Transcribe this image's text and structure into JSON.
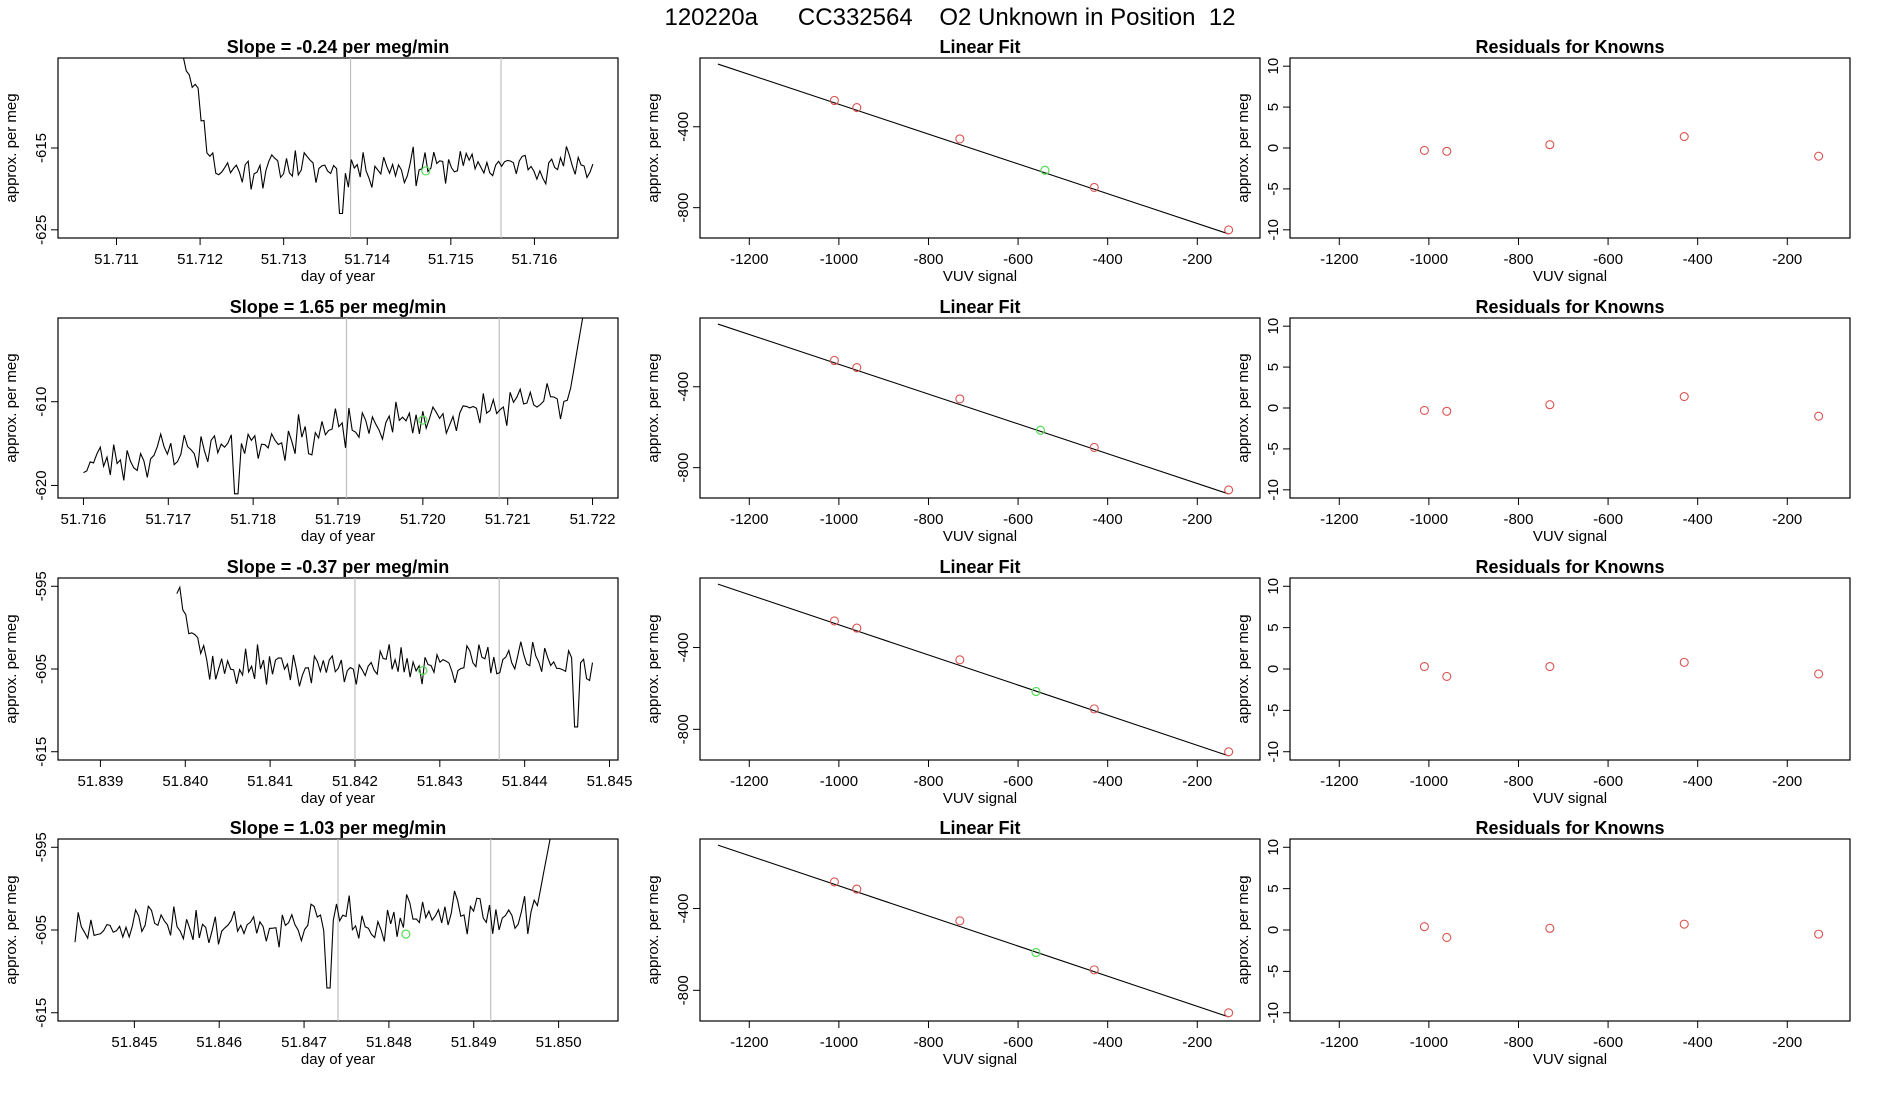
{
  "figure": {
    "title": "120220a      CC332564    O2 Unknown in Position  12"
  },
  "colors": {
    "axis": "#000000",
    "trace": "#000000",
    "vline": "#bfbfbf",
    "known_point": "#d9534f",
    "unknown_point": "#55dd55"
  },
  "chart_data": [
    {
      "type": "line",
      "title": "Slope =  -0.24  per meg/min",
      "xlabel": "day of year",
      "ylabel": "approx. per meg",
      "xlim": [
        51.7103,
        51.717
      ],
      "ylim": [
        -626,
        -604
      ],
      "xticks": [
        "51.711",
        "51.712",
        "51.713",
        "51.714",
        "51.715",
        "51.716"
      ],
      "xtick_values": [
        51.711,
        51.712,
        51.713,
        51.714,
        51.715,
        51.716
      ],
      "yticks": [
        "-625",
        "-615"
      ],
      "ytick_values": [
        -625,
        -615
      ],
      "vlines": [
        51.7138,
        51.7156
      ],
      "trace": {
        "x_start": 51.7118,
        "x_end": 51.7167,
        "n": 140,
        "start_y": -603,
        "settle_y": -617.5,
        "noise": 1.8,
        "spike_at": 51.7137,
        "spike_y": -623,
        "end_y": -617.0,
        "seed": 11
      },
      "unknown_point": {
        "x": 51.7147,
        "y": -617.8
      }
    },
    {
      "type": "scatter",
      "title": "Linear Fit",
      "xlabel": "VUV signal",
      "ylabel": "approx. per meg",
      "xlim": [
        -1310,
        -60
      ],
      "ylim": [
        -950,
        -60
      ],
      "xticks": [
        "-1200",
        "-1000",
        "-800",
        "-600",
        "-400",
        "-200"
      ],
      "xtick_values": [
        -1200,
        -1000,
        -800,
        -600,
        -400,
        -200
      ],
      "yticks": [
        "-800",
        "-400"
      ],
      "ytick_values": [
        -800,
        -400
      ],
      "fit_line": {
        "x": [
          -1270,
          -130
        ],
        "y": [
          -90,
          -930
        ]
      },
      "knowns": {
        "x": [
          -1010,
          -960,
          -730,
          -430,
          -130
        ],
        "y": [
          -270,
          -305,
          -460,
          -700,
          -910
        ]
      },
      "unknown": {
        "x": -540,
        "y": -615
      }
    },
    {
      "type": "scatter",
      "title": "Residuals for Knowns",
      "xlabel": "VUV signal",
      "ylabel": "approx. per meg",
      "xlim": [
        -1310,
        -60
      ],
      "ylim": [
        -11,
        11
      ],
      "xticks": [
        "-1200",
        "-1000",
        "-800",
        "-600",
        "-400",
        "-200"
      ],
      "xtick_values": [
        -1200,
        -1000,
        -800,
        -600,
        -400,
        -200
      ],
      "yticks": [
        "-10",
        "-5",
        "0",
        "5",
        "10"
      ],
      "ytick_values": [
        -10,
        -5,
        0,
        5,
        10
      ],
      "knowns": {
        "x": [
          -1010,
          -960,
          -730,
          -430,
          -130
        ],
        "y": [
          -0.3,
          -0.4,
          0.4,
          1.4,
          -1.0
        ]
      }
    },
    {
      "type": "line",
      "title": "Slope =  1.65  per meg/min",
      "xlabel": "day of year",
      "ylabel": "approx. per meg",
      "xlim": [
        51.7157,
        51.7223
      ],
      "ylim": [
        -621.5,
        -600
      ],
      "xticks": [
        "51.716",
        "51.717",
        "51.718",
        "51.719",
        "51.720",
        "51.721",
        "51.722"
      ],
      "xtick_values": [
        51.716,
        51.717,
        51.718,
        51.719,
        51.72,
        51.721,
        51.722
      ],
      "yticks": [
        "-620",
        "-610"
      ],
      "ytick_values": [
        -620,
        -610
      ],
      "vlines": [
        51.7191,
        51.7209
      ],
      "trace": {
        "x_start": 51.716,
        "x_end": 51.7219,
        "n": 150,
        "start_y": -617.5,
        "settle_y": -617.5,
        "noise": 1.9,
        "spike_at": 51.7178,
        "spike_y": -621,
        "end_y": -609.5,
        "seed": 23,
        "tail_up": -599
      },
      "unknown_point": {
        "x": 51.72,
        "y": -612.2
      }
    },
    {
      "type": "scatter",
      "title": "Linear Fit",
      "xlabel": "VUV signal",
      "ylabel": "approx. per meg",
      "xlim": [
        -1310,
        -60
      ],
      "ylim": [
        -950,
        -60
      ],
      "xticks": [
        "-1200",
        "-1000",
        "-800",
        "-600",
        "-400",
        "-200"
      ],
      "xtick_values": [
        -1200,
        -1000,
        -800,
        -600,
        -400,
        -200
      ],
      "yticks": [
        "-800",
        "-400"
      ],
      "ytick_values": [
        -800,
        -400
      ],
      "fit_line": {
        "x": [
          -1270,
          -130
        ],
        "y": [
          -90,
          -930
        ]
      },
      "knowns": {
        "x": [
          -1010,
          -960,
          -730,
          -430,
          -130
        ],
        "y": [
          -270,
          -305,
          -460,
          -700,
          -910
        ]
      },
      "unknown": {
        "x": -550,
        "y": -615
      }
    },
    {
      "type": "scatter",
      "title": "Residuals for Knowns",
      "xlabel": "VUV signal",
      "ylabel": "approx. per meg",
      "xlim": [
        -1310,
        -60
      ],
      "ylim": [
        -11,
        11
      ],
      "xticks": [
        "-1200",
        "-1000",
        "-800",
        "-600",
        "-400",
        "-200"
      ],
      "xtick_values": [
        -1200,
        -1000,
        -800,
        -600,
        -400,
        -200
      ],
      "yticks": [
        "-10",
        "-5",
        "0",
        "5",
        "10"
      ],
      "ytick_values": [
        -10,
        -5,
        0,
        5,
        10
      ],
      "knowns": {
        "x": [
          -1010,
          -960,
          -730,
          -430,
          -130
        ],
        "y": [
          -0.3,
          -0.4,
          0.4,
          1.4,
          -1.0
        ]
      }
    },
    {
      "type": "line",
      "title": "Slope =  -0.37  per meg/min",
      "xlabel": "day of year",
      "ylabel": "approx. per meg",
      "xlim": [
        51.8385,
        51.8451
      ],
      "ylim": [
        -616,
        -594
      ],
      "xticks": [
        "51.839",
        "51.840",
        "51.841",
        "51.842",
        "51.843",
        "51.844",
        "51.845"
      ],
      "xtick_values": [
        51.839,
        51.84,
        51.841,
        51.842,
        51.843,
        51.844,
        51.845
      ],
      "yticks": [
        "-615",
        "-605",
        "-595"
      ],
      "ytick_values": [
        -615,
        -605,
        -595
      ],
      "vlines": [
        51.842,
        51.8437
      ],
      "trace": {
        "x_start": 51.8399,
        "x_end": 51.8448,
        "n": 140,
        "start_y": -595,
        "settle_y": -605,
        "noise": 1.8,
        "spike_at": 51.8446,
        "spike_y": -612,
        "end_y": -604,
        "seed": 37
      },
      "unknown_point": {
        "x": 51.8428,
        "y": -605.2
      }
    },
    {
      "type": "scatter",
      "title": "Linear Fit",
      "xlabel": "VUV signal",
      "ylabel": "approx. per meg",
      "xlim": [
        -1310,
        -60
      ],
      "ylim": [
        -950,
        -60
      ],
      "xticks": [
        "-1200",
        "-1000",
        "-800",
        "-600",
        "-400",
        "-200"
      ],
      "xtick_values": [
        -1200,
        -1000,
        -800,
        -600,
        -400,
        -200
      ],
      "yticks": [
        "-800",
        "-400"
      ],
      "ytick_values": [
        -800,
        -400
      ],
      "fit_line": {
        "x": [
          -1270,
          -130
        ],
        "y": [
          -90,
          -930
        ]
      },
      "knowns": {
        "x": [
          -1010,
          -960,
          -730,
          -430,
          -130
        ],
        "y": [
          -270,
          -305,
          -460,
          -700,
          -910
        ]
      },
      "unknown": {
        "x": -560,
        "y": -615
      }
    },
    {
      "type": "scatter",
      "title": "Residuals for Knowns",
      "xlabel": "VUV signal",
      "ylabel": "approx. per meg",
      "xlim": [
        -1310,
        -60
      ],
      "ylim": [
        -11,
        11
      ],
      "xticks": [
        "-1200",
        "-1000",
        "-800",
        "-600",
        "-400",
        "-200"
      ],
      "xtick_values": [
        -1200,
        -1000,
        -800,
        -600,
        -400,
        -200
      ],
      "yticks": [
        "-10",
        "-5",
        "0",
        "5",
        "10"
      ],
      "ytick_values": [
        -10,
        -5,
        0,
        5,
        10
      ],
      "knowns": {
        "x": [
          -1010,
          -960,
          -730,
          -430,
          -130
        ],
        "y": [
          0.3,
          -0.9,
          0.3,
          0.8,
          -0.6
        ]
      }
    },
    {
      "type": "line",
      "title": "Slope =  1.03  per meg/min",
      "xlabel": "day of year",
      "ylabel": "approx. per meg",
      "xlim": [
        51.8441,
        51.8507
      ],
      "ylim": [
        -616,
        -594
      ],
      "xticks": [
        "51.845",
        "51.846",
        "51.847",
        "51.848",
        "51.849",
        "51.850"
      ],
      "xtick_values": [
        51.845,
        51.846,
        51.847,
        51.848,
        51.849,
        51.85
      ],
      "yticks": [
        "-615",
        "-605",
        "-595"
      ],
      "ytick_values": [
        -615,
        -605,
        -595
      ],
      "vlines": [
        51.8474,
        51.8492
      ],
      "trace": {
        "x_start": 51.8443,
        "x_end": 51.8499,
        "n": 150,
        "start_y": -605.5,
        "settle_y": -605,
        "noise": 2.0,
        "spike_at": 51.8473,
        "spike_y": -612,
        "end_y": -603,
        "seed": 51,
        "tail_up": -594
      },
      "unknown_point": {
        "x": 51.8482,
        "y": -605.5
      }
    },
    {
      "type": "scatter",
      "title": "Linear Fit",
      "xlabel": "VUV signal",
      "ylabel": "approx. per meg",
      "xlim": [
        -1310,
        -60
      ],
      "ylim": [
        -950,
        -60
      ],
      "xticks": [
        "-1200",
        "-1000",
        "-800",
        "-600",
        "-400",
        "-200"
      ],
      "xtick_values": [
        -1200,
        -1000,
        -800,
        -600,
        -400,
        -200
      ],
      "yticks": [
        "-800",
        "-400"
      ],
      "ytick_values": [
        -800,
        -400
      ],
      "fit_line": {
        "x": [
          -1270,
          -130
        ],
        "y": [
          -90,
          -930
        ]
      },
      "knowns": {
        "x": [
          -1010,
          -960,
          -730,
          -430,
          -130
        ],
        "y": [
          -270,
          -305,
          -460,
          -700,
          -910
        ]
      },
      "unknown": {
        "x": -560,
        "y": -615
      }
    },
    {
      "type": "scatter",
      "title": "Residuals for Knowns",
      "xlabel": "VUV signal",
      "ylabel": "approx. per meg",
      "xlim": [
        -1310,
        -60
      ],
      "ylim": [
        -11,
        11
      ],
      "xticks": [
        "-1200",
        "-1000",
        "-800",
        "-600",
        "-400",
        "-200"
      ],
      "xtick_values": [
        -1200,
        -1000,
        -800,
        -600,
        -400,
        -200
      ],
      "yticks": [
        "-10",
        "-5",
        "0",
        "5",
        "10"
      ],
      "ytick_values": [
        -10,
        -5,
        0,
        5,
        10
      ],
      "knowns": {
        "x": [
          -1010,
          -960,
          -730,
          -430,
          -130
        ],
        "y": [
          0.4,
          -0.9,
          0.2,
          0.7,
          -0.5
        ]
      }
    }
  ]
}
